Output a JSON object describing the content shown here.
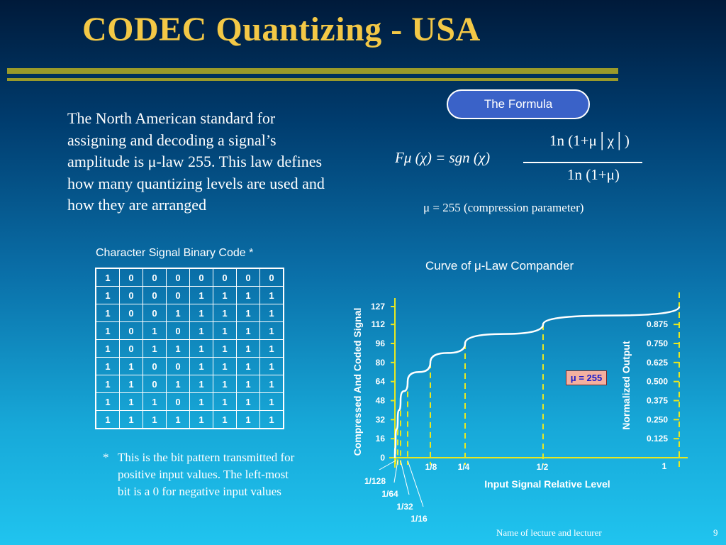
{
  "slide": {
    "title": "CODEC Quantizing - USA",
    "intro": "The North American standard for assigning and decoding a signal’s amplitude is μ-law 255. This law defines how many quantizing levels are used and how they are arranged",
    "formula_label": "The Formula",
    "formula_left": "Fμ (χ) = sgn (χ)",
    "formula_numerator": "1n (1+μ│χ│)",
    "formula_denominator": "1n (1+μ)",
    "compression_note": "μ = 255 (compression parameter)",
    "table_caption": "Character Signal Binary Code *",
    "footnote_star": "*",
    "footnote_text": "This is the bit pattern transmitted for positive input values. The left-most bit is a 0 for negative input values",
    "footer": "Name of lecture and lecturer",
    "page_number": "9"
  },
  "code_table": [
    [
      "1",
      "0",
      "0",
      "0",
      "0",
      "0",
      "0",
      "0"
    ],
    [
      "1",
      "0",
      "0",
      "0",
      "1",
      "1",
      "1",
      "1"
    ],
    [
      "1",
      "0",
      "0",
      "1",
      "1",
      "1",
      "1",
      "1"
    ],
    [
      "1",
      "0",
      "1",
      "0",
      "1",
      "1",
      "1",
      "1"
    ],
    [
      "1",
      "0",
      "1",
      "1",
      "1",
      "1",
      "1",
      "1"
    ],
    [
      "1",
      "1",
      "0",
      "0",
      "1",
      "1",
      "1",
      "1"
    ],
    [
      "1",
      "1",
      "0",
      "1",
      "1",
      "1",
      "1",
      "1"
    ],
    [
      "1",
      "1",
      "1",
      "0",
      "1",
      "1",
      "1",
      "1"
    ],
    [
      "1",
      "1",
      "1",
      "1",
      "1",
      "1",
      "1",
      "1"
    ]
  ],
  "chart_data": {
    "type": "line",
    "title": "Curve of μ-Law Compander",
    "xlabel": "Input Signal Relative Level",
    "ylabel": "Compressed And Coded Signal",
    "y2label": "Normalized Output",
    "x_ticks": [
      "1/128",
      "1/64",
      "1/32",
      "1/16",
      "1/8",
      "1/4",
      "1/2",
      "1"
    ],
    "x_tick_values": [
      0.0078125,
      0.015625,
      0.03125,
      0.0625,
      0.125,
      0.25,
      0.5,
      1
    ],
    "y_ticks": [
      0,
      16,
      32,
      48,
      64,
      80,
      96,
      112,
      127
    ],
    "y2_ticks": [
      "0.125",
      "0.250",
      "0.375",
      "0.500",
      "0.625",
      "0.750",
      "0.875"
    ],
    "annotation": "μ = 255",
    "series": [
      {
        "x": [
          0,
          0.0078125,
          0.015625,
          0.03125,
          0.0625,
          0.125,
          0.25,
          0.5,
          1
        ],
        "y": [
          0,
          16,
          32,
          48,
          64,
          80,
          96,
          112,
          127
        ]
      }
    ],
    "colors": {
      "curve": "#ffffff",
      "guides": "#e8e820",
      "axes": "#e8e820"
    }
  }
}
